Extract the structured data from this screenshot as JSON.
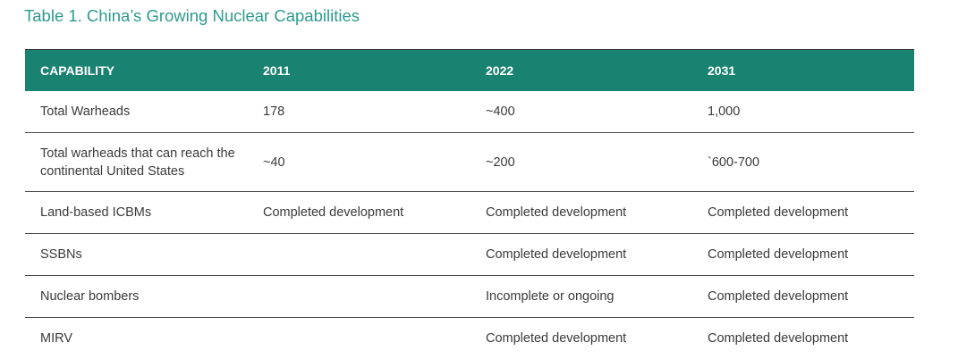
{
  "title": "Table 1. China’s Growing Nuclear Capabilities",
  "table": {
    "headers": [
      "CAPABILITY",
      "2011",
      "2022",
      "2031"
    ],
    "rows": [
      [
        "Total Warheads",
        "178",
        "~400",
        "1,000"
      ],
      [
        "Total warheads that can reach the continental United States",
        "~40",
        "~200",
        "`600-700"
      ],
      [
        "Land-based ICBMs",
        "Completed development",
        "Completed development",
        "Completed development"
      ],
      [
        "SSBNs",
        "",
        "Completed development",
        "Completed development"
      ],
      [
        "Nuclear bombers",
        "",
        "Incomplete or ongoing",
        "Completed development"
      ],
      [
        "MIRV",
        "",
        "Completed development",
        "Completed development"
      ]
    ]
  },
  "colors": {
    "title": "#2e9a8f",
    "header_background": "#1a8271",
    "header_text": "#ffffff",
    "body_text": "#3a3a3a"
  }
}
